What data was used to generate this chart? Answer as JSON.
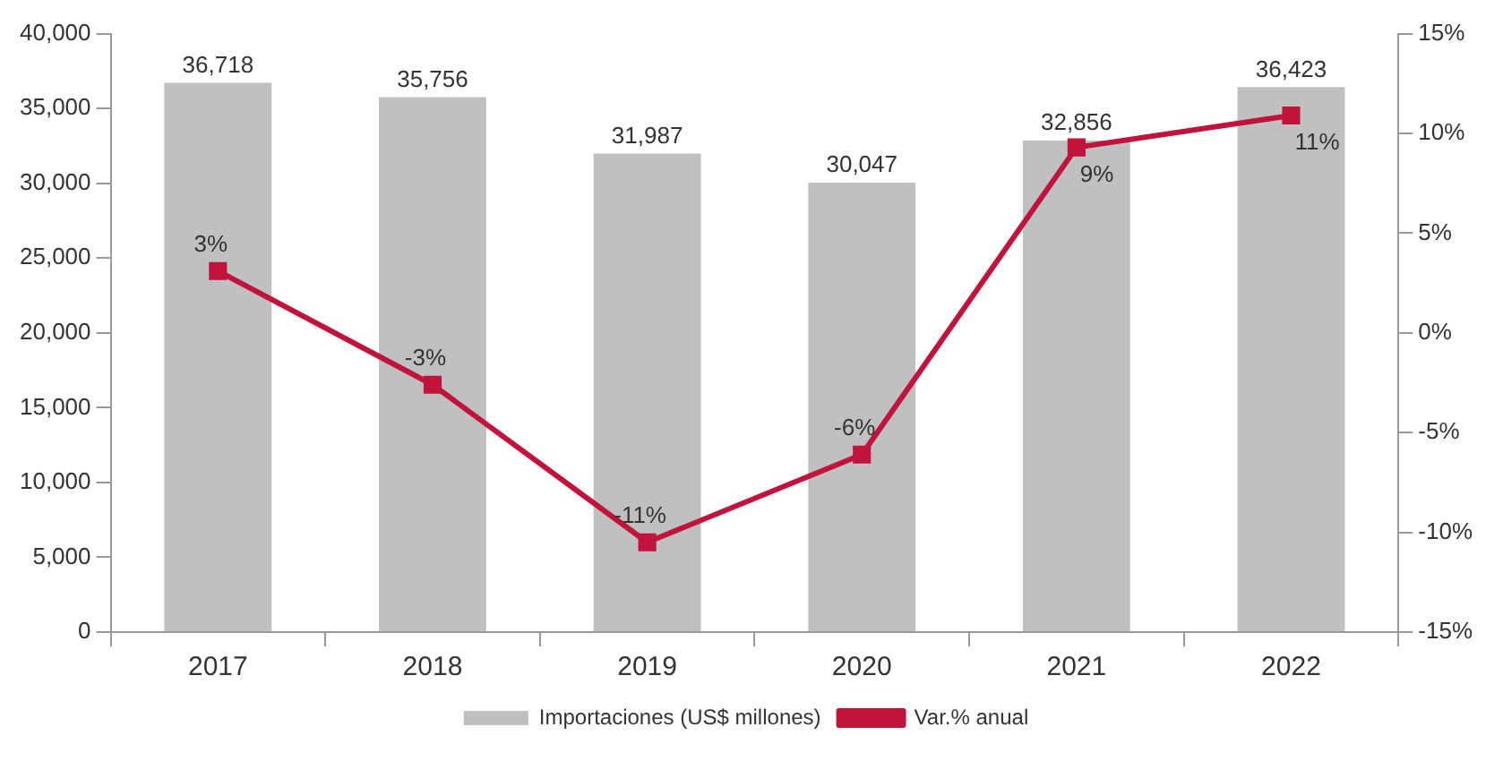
{
  "chart_data": {
    "type": "bar",
    "categories": [
      "2017",
      "2018",
      "2019",
      "2020",
      "2021",
      "2022"
    ],
    "series": [
      {
        "name": "Importaciones (US$ millones)",
        "color": "#c0c0c0",
        "values": [
          36718,
          35756,
          31987,
          30047,
          32856,
          36423
        ],
        "value_labels": [
          "36,718",
          "35,756",
          "31,987",
          "30,047",
          "32,856",
          "36,423"
        ]
      },
      {
        "name": "Var.% anual",
        "type": "line",
        "axis": "y2",
        "color": "#c0143c",
        "marker": "square",
        "values": [
          3.1,
          -2.6,
          -10.5,
          -6.1,
          9.3,
          10.9
        ],
        "value_labels": [
          "3%",
          "-3%",
          "-11%",
          "-6%",
          "9%",
          "11%"
        ]
      }
    ],
    "ylim": [
      0,
      40000
    ],
    "yticks": [
      0,
      {
        "value": 5000,
        "label": "5,000"
      },
      {
        "value": 10000,
        "label": "10,000"
      },
      {
        "value": 15000,
        "label": "15,000"
      },
      {
        "value": 20000,
        "label": "20,000"
      },
      {
        "value": 25000,
        "label": "25,000"
      },
      {
        "value": 30000,
        "label": "30,000"
      },
      {
        "value": 35000,
        "label": "35,000"
      },
      {
        "value": 40000,
        "label": "40,000"
      }
    ],
    "y2lim": [
      -15,
      15
    ],
    "y2ticks": [
      {
        "value": -15,
        "label": "-15%"
      },
      {
        "value": -10,
        "label": "-10%"
      },
      {
        "value": -5,
        "label": "-5%"
      },
      {
        "value": 0,
        "label": "0%"
      },
      {
        "value": 5,
        "label": "5%"
      },
      {
        "value": 10,
        "label": "10%"
      },
      {
        "value": 15,
        "label": "15%"
      }
    ],
    "legend": "bottom",
    "grid": false
  }
}
